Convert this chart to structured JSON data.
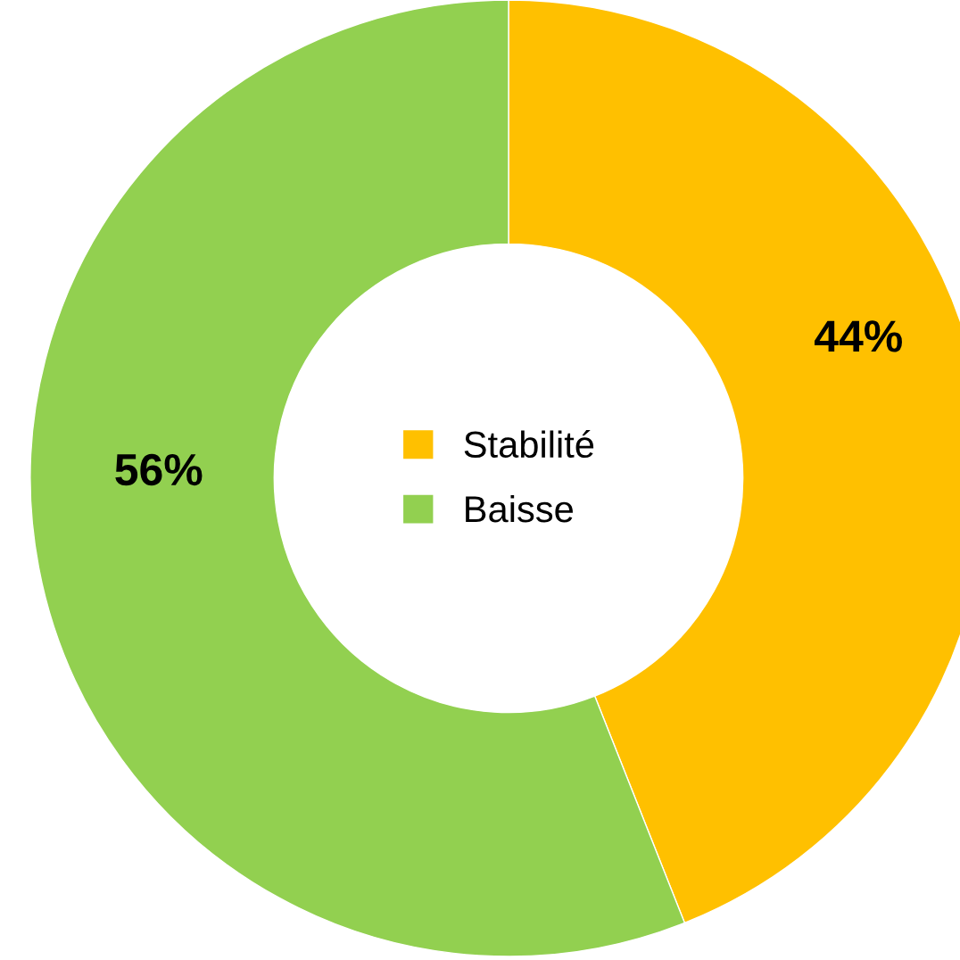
{
  "chart_data": {
    "type": "donut",
    "categories": [
      "Stabilité",
      "Baisse"
    ],
    "values": [
      44,
      56
    ],
    "colors": [
      "#ffc000",
      "#92d050"
    ],
    "value_labels": [
      "44%",
      "56%"
    ],
    "legend": "center"
  }
}
